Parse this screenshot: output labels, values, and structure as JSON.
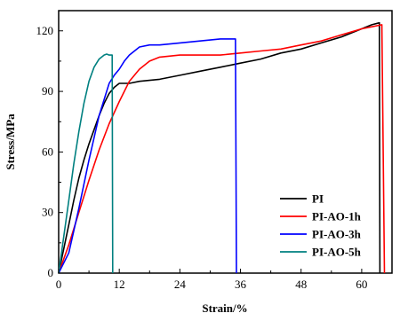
{
  "chart_data": {
    "type": "line",
    "xlabel": "Strain/%",
    "ylabel": "Stress/MPa",
    "xlim": [
      0,
      66
    ],
    "ylim": [
      0,
      130
    ],
    "xticks": [
      0,
      12,
      24,
      36,
      48,
      60
    ],
    "yticks": [
      0,
      30,
      60,
      90,
      120
    ],
    "grid": false,
    "legend_position": "bottom-right",
    "series": [
      {
        "name": "PI",
        "color": "#000000",
        "x": [
          0,
          1,
          2,
          3,
          4,
          5,
          6,
          7,
          8,
          9,
          10,
          11,
          12,
          14,
          16,
          20,
          24,
          28,
          32,
          36,
          40,
          44,
          48,
          52,
          56,
          60,
          62,
          63.5,
          63.6
        ],
        "y": [
          0,
          12,
          24,
          36,
          47,
          56,
          64,
          71,
          78,
          84,
          89,
          92,
          94,
          94,
          95,
          96,
          98,
          100,
          102,
          104,
          106,
          109,
          111,
          114,
          117,
          121,
          123,
          124,
          0
        ]
      },
      {
        "name": "PI-AO-1h",
        "color": "#ff0000",
        "x": [
          0,
          2,
          4,
          6,
          8,
          10,
          12,
          14,
          16,
          18,
          20,
          24,
          28,
          32,
          36,
          40,
          44,
          48,
          52,
          56,
          60,
          62,
          64,
          64.5
        ],
        "y": [
          0,
          14,
          30,
          46,
          61,
          74,
          85,
          95,
          101,
          105,
          107,
          108,
          108,
          108,
          109,
          110,
          111,
          113,
          115,
          118,
          121,
          122,
          123,
          0
        ]
      },
      {
        "name": "PI-AO-3h",
        "color": "#0000ff",
        "x": [
          0,
          2,
          4,
          6,
          8,
          10,
          11,
          12,
          13,
          14,
          16,
          18,
          20,
          24,
          28,
          32,
          35,
          35.2
        ],
        "y": [
          0,
          10,
          32,
          56,
          78,
          94,
          98,
          101,
          105,
          108,
          112,
          113,
          113,
          114,
          115,
          116,
          116,
          0
        ]
      },
      {
        "name": "PI-AO-5h",
        "color": "#008080",
        "x": [
          0,
          1,
          2,
          3,
          4,
          5,
          6,
          7,
          8,
          9,
          9.5,
          10,
          10.6,
          10.7
        ],
        "y": [
          0,
          18,
          36,
          54,
          70,
          84,
          95,
          102,
          106,
          108,
          108.5,
          108,
          108,
          0
        ]
      }
    ]
  }
}
